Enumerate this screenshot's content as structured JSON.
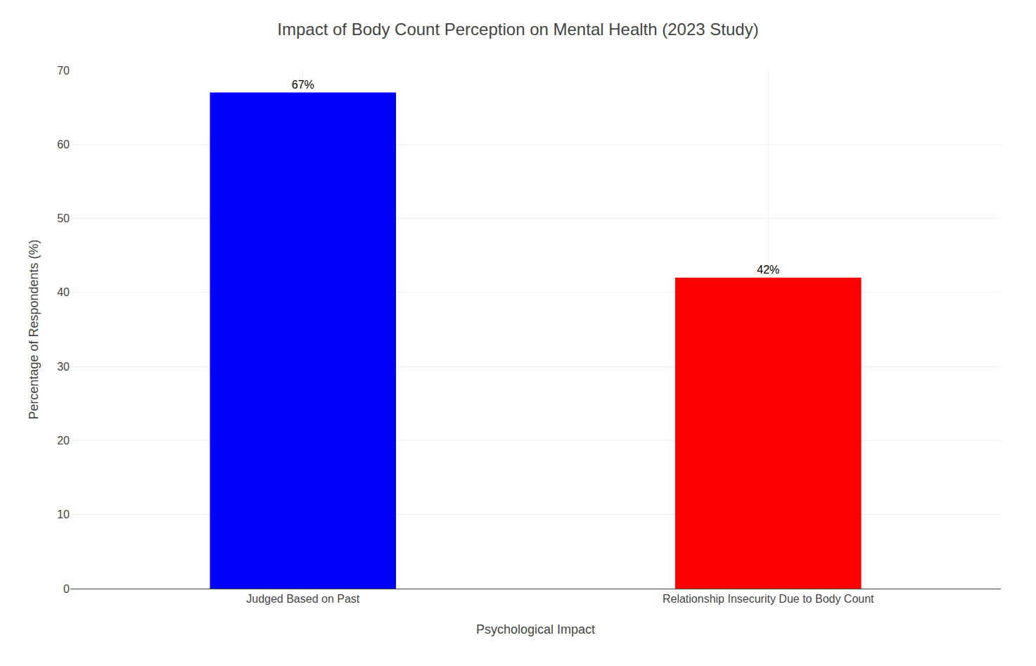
{
  "chart_data": {
    "type": "bar",
    "title": "Impact of Body Count Perception on Mental Health (2023 Study)",
    "xlabel": "Psychological Impact",
    "ylabel": "Percentage of Respondents (%)",
    "categories": [
      "Judged Based on Past",
      "Relationship Insecurity Due to Body Count"
    ],
    "values": [
      67,
      42
    ],
    "value_labels": [
      "67%",
      "42%"
    ],
    "data_labels": true,
    "colors": [
      "#0000ff",
      "#ff0000"
    ],
    "ylim": [
      0,
      70
    ],
    "yticks": [
      0,
      10,
      20,
      30,
      40,
      50,
      60,
      70
    ],
    "grid": true
  }
}
